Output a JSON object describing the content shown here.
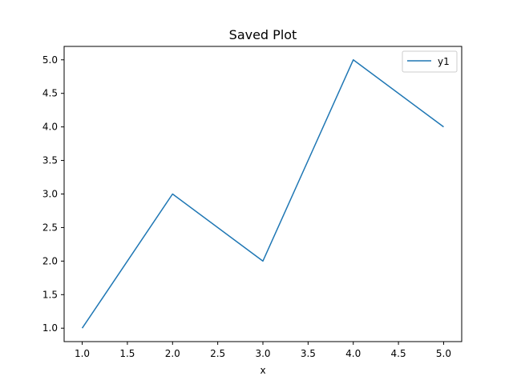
{
  "chart_data": {
    "type": "line",
    "title": "Saved Plot",
    "xlabel": "x",
    "ylabel": "",
    "x": [
      1,
      2,
      3,
      4,
      5
    ],
    "series": [
      {
        "name": "y1",
        "values": [
          1,
          3,
          2,
          5,
          4
        ],
        "color": "#1f77b4"
      }
    ],
    "xlim": [
      0.8,
      5.2
    ],
    "ylim": [
      0.8,
      5.2
    ],
    "xticks": [
      1.0,
      1.5,
      2.0,
      2.5,
      3.0,
      3.5,
      4.0,
      4.5,
      5.0
    ],
    "xtick_labels": [
      "1.0",
      "1.5",
      "2.0",
      "2.5",
      "3.0",
      "3.5",
      "4.0",
      "4.5",
      "5.0"
    ],
    "yticks": [
      1.0,
      1.5,
      2.0,
      2.5,
      3.0,
      3.5,
      4.0,
      4.5,
      5.0
    ],
    "ytick_labels": [
      "1.0",
      "1.5",
      "2.0",
      "2.5",
      "3.0",
      "3.5",
      "4.0",
      "4.5",
      "5.0"
    ],
    "grid": false,
    "legend_position": "top-right"
  }
}
